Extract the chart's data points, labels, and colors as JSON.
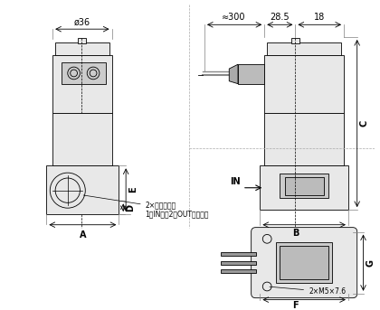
{
  "bg_color": "#ffffff",
  "line_color": "#000000",
  "gray_fill": "#d8d8d8",
  "light_gray": "#e8e8e8",
  "dim_color": "#000000",
  "title": "",
  "dims": {
    "top_width": "ø36",
    "approx_300": "≈300",
    "dim_28_5": "28.5",
    "dim_18": "18",
    "label_A": "A",
    "label_B": "B",
    "label_C": "C",
    "label_D": "D",
    "label_E": "E",
    "label_F": "F",
    "label_G": "G",
    "label_IN": "IN",
    "note_line1": "2×管接続口径",
    "note_line2": "1（IN），2（OUT）ポート",
    "screw_note": "2×M5×7.6"
  }
}
